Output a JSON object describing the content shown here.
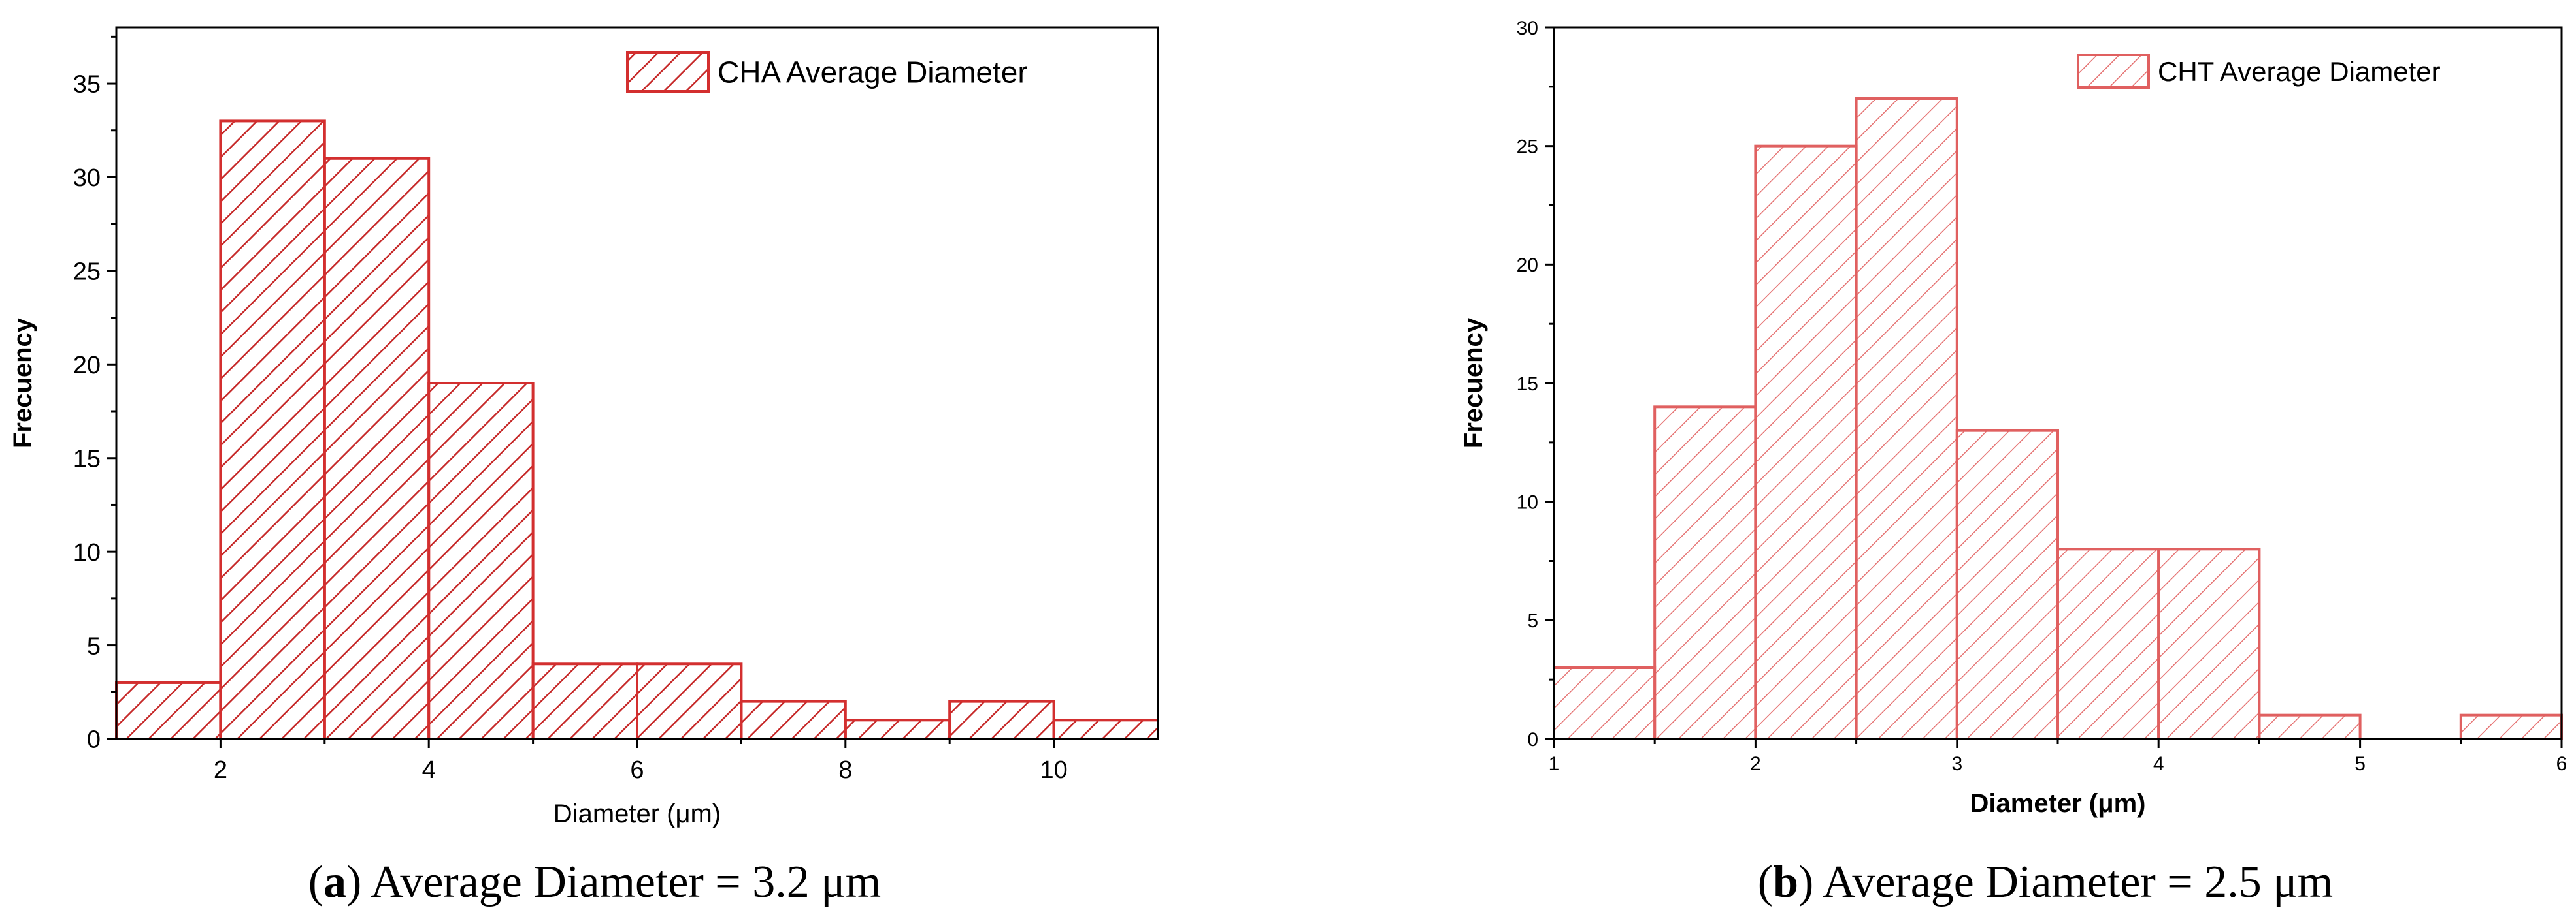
{
  "chart_data": [
    {
      "type": "bar",
      "panel": "a",
      "title": "",
      "legend": "CHA Average Diameter",
      "legend_position": "top-right",
      "xlabel": "Diameter (μm)",
      "ylabel": "Frecuency",
      "xlim": [
        1,
        11
      ],
      "ylim": [
        0,
        38
      ],
      "xticks": [
        2,
        4,
        6,
        8,
        10
      ],
      "yticks": [
        0,
        5,
        10,
        15,
        20,
        25,
        30,
        35
      ],
      "bins": [
        {
          "x0": 1,
          "x1": 2,
          "value": 3
        },
        {
          "x0": 2,
          "x1": 3,
          "value": 33
        },
        {
          "x0": 3,
          "x1": 4,
          "value": 31
        },
        {
          "x0": 4,
          "x1": 5,
          "value": 19
        },
        {
          "x0": 5,
          "x1": 6,
          "value": 4
        },
        {
          "x0": 6,
          "x1": 7,
          "value": 4
        },
        {
          "x0": 7,
          "x1": 8,
          "value": 2
        },
        {
          "x0": 8,
          "x1": 9,
          "value": 1
        },
        {
          "x0": 9,
          "x1": 10,
          "value": 2
        },
        {
          "x0": 10,
          "x1": 11,
          "value": 1
        }
      ],
      "caption_label": "a",
      "caption_text": "Average Diameter = 3.2 μm",
      "color": "#d32f2f"
    },
    {
      "type": "bar",
      "panel": "b",
      "title": "",
      "legend": "CHT Average Diameter",
      "legend_position": "top-right",
      "xlabel": "Diameter (μm)",
      "ylabel": "Frecuency",
      "xlim": [
        1,
        6
      ],
      "ylim": [
        0,
        30
      ],
      "xticks": [
        1,
        2,
        3,
        4,
        5,
        6
      ],
      "yticks": [
        0,
        5,
        10,
        15,
        20,
        25,
        30
      ],
      "bins": [
        {
          "x0": 1,
          "x1": 1.5,
          "value": 3
        },
        {
          "x0": 1.5,
          "x1": 2,
          "value": 14
        },
        {
          "x0": 2,
          "x1": 2.5,
          "value": 25
        },
        {
          "x0": 2.5,
          "x1": 3,
          "value": 27
        },
        {
          "x0": 3,
          "x1": 3.5,
          "value": 13
        },
        {
          "x0": 3.5,
          "x1": 4,
          "value": 8
        },
        {
          "x0": 4,
          "x1": 4.5,
          "value": 8
        },
        {
          "x0": 4.5,
          "x1": 5,
          "value": 1
        },
        {
          "x0": 5,
          "x1": 5.5,
          "value": 0
        },
        {
          "x0": 5.5,
          "x1": 6,
          "value": 1
        }
      ],
      "caption_label": "b",
      "caption_text": "Average Diameter = 2.5 μm",
      "color": "#e06060"
    }
  ]
}
